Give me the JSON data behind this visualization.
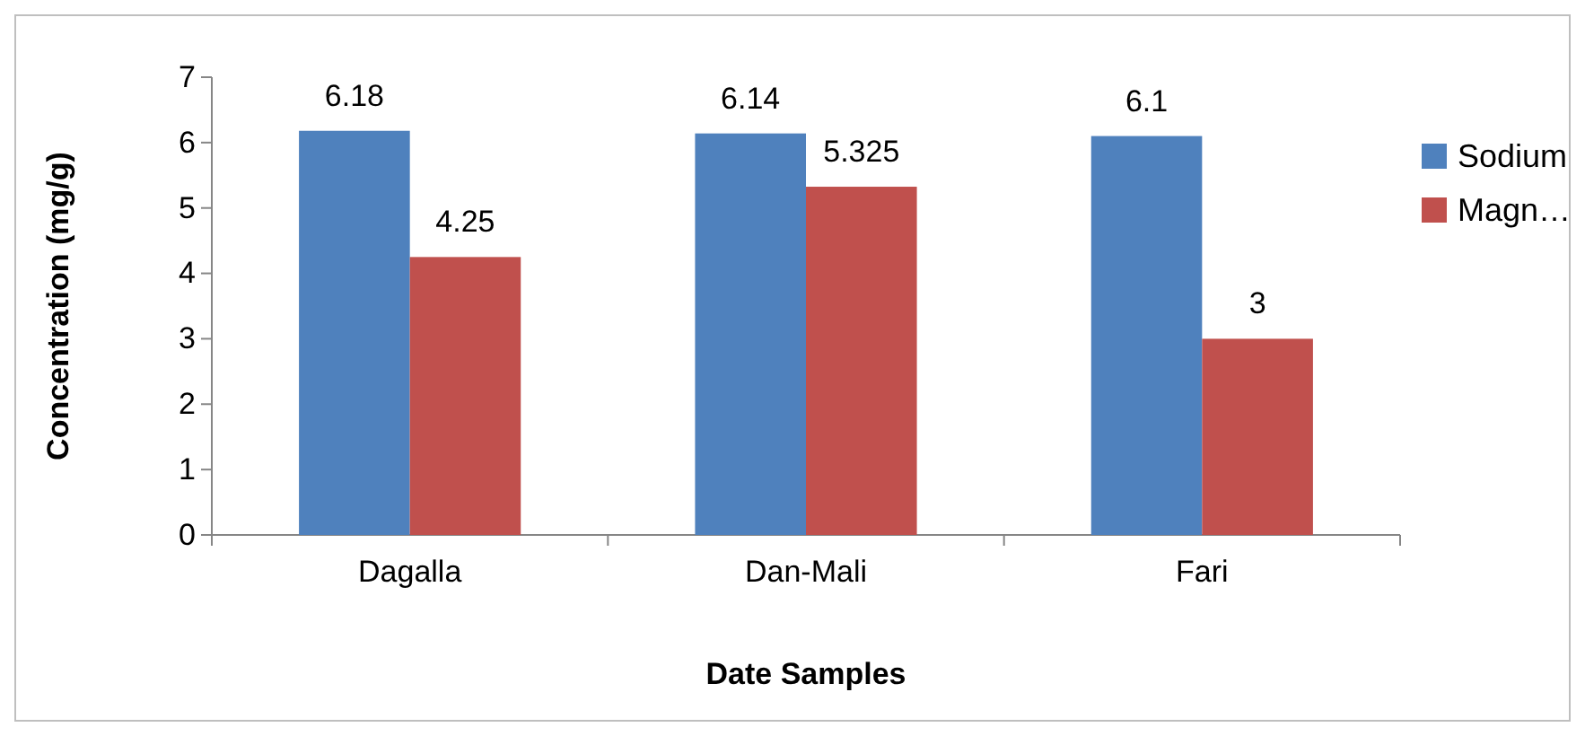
{
  "chart_data": {
    "type": "bar",
    "xlabel": "Date Samples",
    "ylabel": "Concentration (mg/g)",
    "categories": [
      "Dagalla",
      "Dan-Mali",
      "Fari"
    ],
    "series": [
      {
        "name": "Sodium",
        "color": "#4f81bd",
        "values": [
          6.18,
          6.14,
          6.1
        ]
      },
      {
        "name": "Magn…",
        "color": "#c0504d",
        "values": [
          4.25,
          5.325,
          3
        ]
      }
    ],
    "ylim": [
      0,
      7
    ],
    "yticks": [
      0,
      1,
      2,
      3,
      4,
      5,
      6,
      7
    ],
    "data_labels": true,
    "legend": "right",
    "grid": false
  }
}
